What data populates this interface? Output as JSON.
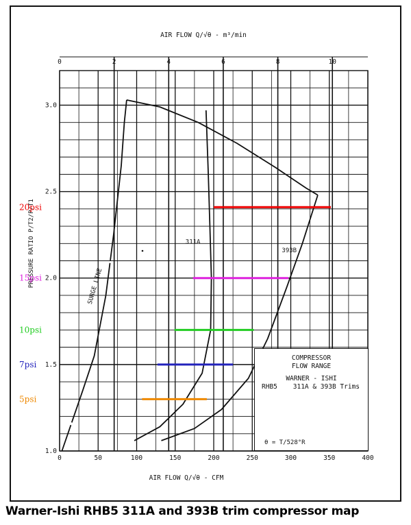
{
  "caption": "Warner-Ishi RHB5 311A and 393B trim compressor map",
  "info_box": {
    "title_lines": [
      "COMPRESSOR",
      "FLOW RANGE"
    ],
    "maker": "WARNER - ISHI",
    "model_line": "RHB5    311A & 393B Trims",
    "theta": "θ = T/528°R"
  },
  "chart_data": {
    "type": "line",
    "title": "",
    "top_axis": {
      "label": "AIR FLOW   Q/√θ  - m³/min",
      "range": [
        0,
        11.3
      ],
      "ticks": [
        0,
        2,
        4,
        6,
        8,
        10
      ]
    },
    "bottom_axis": {
      "label": "AIR FLOW  Q/√θ - CFM",
      "range": [
        0,
        400
      ],
      "ticks": [
        0,
        50,
        100,
        150,
        200,
        250,
        300,
        350,
        400
      ]
    },
    "y_axis": {
      "label": "PRESSURE RATIO  P/T2/P/T1",
      "range": [
        1.0,
        3.2
      ],
      "tick_labels": [
        {
          "value": 1.0,
          "label": "1.0"
        },
        {
          "value": 1.5,
          "label": "1.5"
        },
        {
          "value": 2.0,
          "label": "2.0"
        },
        {
          "value": 2.5,
          "label": "2.5"
        },
        {
          "value": 3.0,
          "label": "3.0"
        }
      ]
    },
    "grid": true,
    "series": [
      {
        "name": "SURGE LINE",
        "color": "#111111",
        "points": [
          [
            3,
            1.0
          ],
          [
            30,
            1.35
          ],
          [
            45,
            1.55
          ],
          [
            60,
            1.9
          ],
          [
            70,
            2.25
          ],
          [
            80,
            2.65
          ],
          [
            84,
            2.9
          ],
          [
            87,
            3.03
          ]
        ]
      },
      {
        "name": "",
        "color": "#111111",
        "points": [
          [
            87,
            3.03
          ],
          [
            130,
            2.99
          ],
          [
            180,
            2.9
          ],
          [
            230,
            2.78
          ],
          [
            280,
            2.64
          ],
          [
            320,
            2.52
          ],
          [
            335,
            2.48
          ]
        ]
      },
      {
        "name": "311A",
        "color": "#111111",
        "points": [
          [
            190,
            2.97
          ],
          [
            193,
            2.6
          ],
          [
            195,
            2.3
          ],
          [
            197,
            2.0
          ],
          [
            196,
            1.7
          ],
          [
            185,
            1.45
          ],
          [
            160,
            1.27
          ],
          [
            130,
            1.14
          ],
          [
            97,
            1.06
          ]
        ]
      },
      {
        "name": "393B",
        "color": "#111111",
        "points": [
          [
            335,
            2.48
          ],
          [
            315,
            2.2
          ],
          [
            295,
            1.95
          ],
          [
            270,
            1.65
          ],
          [
            245,
            1.42
          ],
          [
            210,
            1.24
          ],
          [
            175,
            1.13
          ],
          [
            132,
            1.06
          ]
        ]
      }
    ],
    "levels": [
      {
        "label": "20psi",
        "ratio": 2.41,
        "cfm_from": 200,
        "cfm_to": 352,
        "color": "#ee0000"
      },
      {
        "label": "15psi",
        "ratio": 2.0,
        "cfm_from": 173,
        "cfm_to": 297,
        "color": "#dd22dd"
      },
      {
        "label": "10psi",
        "ratio": 1.7,
        "cfm_from": 149,
        "cfm_to": 252,
        "color": "#22cc22"
      },
      {
        "label": "7psi",
        "ratio": 1.5,
        "cfm_from": 127,
        "cfm_to": 225,
        "color": "#2222bb"
      },
      {
        "label": "5psi",
        "ratio": 1.3,
        "cfm_from": 107,
        "cfm_to": 191,
        "color": "#ee8800"
      }
    ],
    "curve_labels": [
      {
        "text": "311A",
        "cfm": 173,
        "ratio": 2.2
      },
      {
        "text": "393B",
        "cfm": 298,
        "ratio": 2.15
      },
      {
        "text": "SURGE LINE",
        "cfm": 48,
        "ratio": 1.95
      }
    ]
  }
}
